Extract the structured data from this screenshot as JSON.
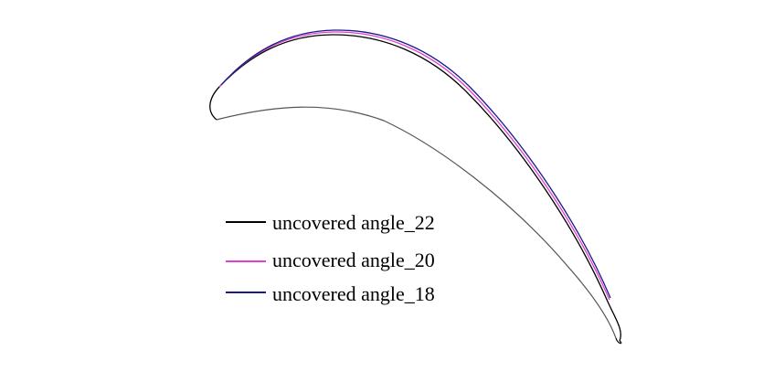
{
  "series": [
    {
      "label": "uncovered angle_22",
      "color": "#000000"
    },
    {
      "label": "uncovered angle_20",
      "color": "#e040d0"
    },
    {
      "label": "uncovered angle_18",
      "color": "#1a1a8c"
    }
  ],
  "pressure_side_color": "#555555"
}
